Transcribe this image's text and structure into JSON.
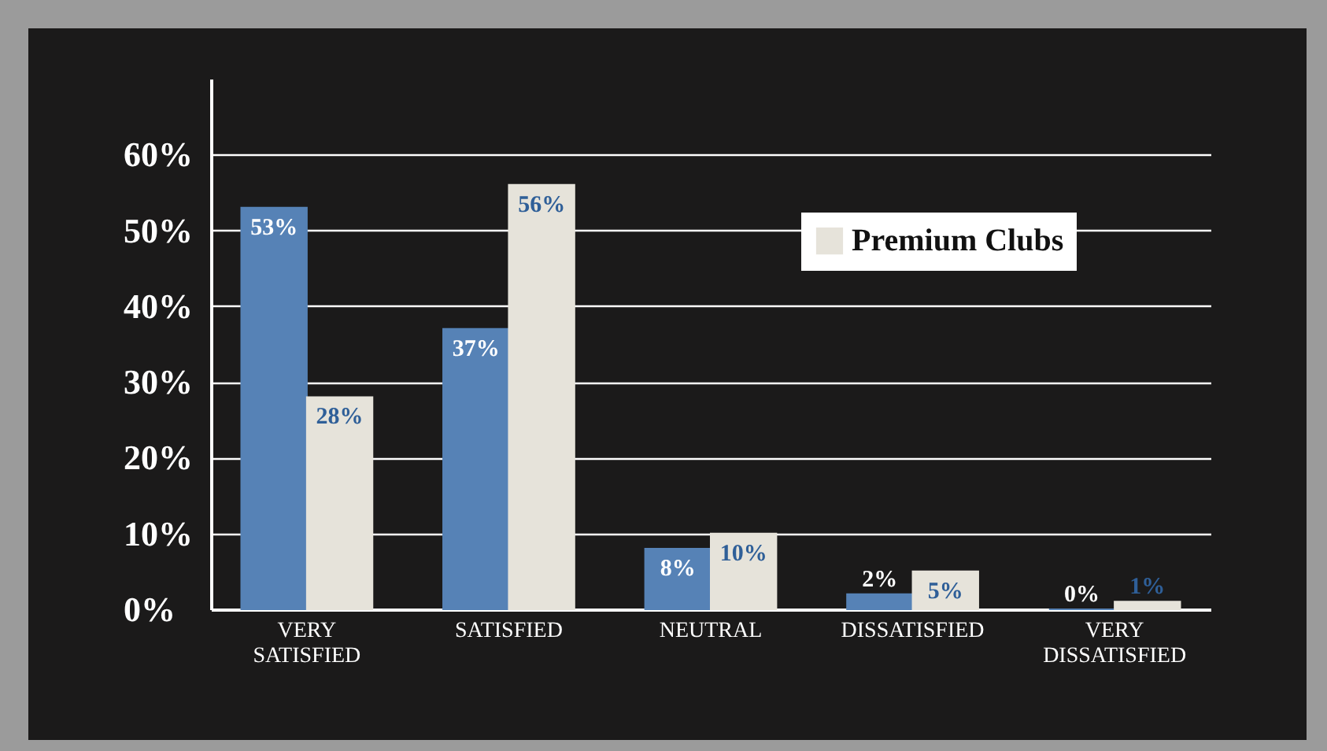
{
  "chart_data": {
    "type": "bar",
    "categories": [
      "VERY SATISFIED",
      "SATISFIED",
      "NEUTRAL",
      "DISSATISFIED",
      "VERY DISSATISFIED"
    ],
    "series": [
      {
        "color": "#5682b6",
        "values": [
          53,
          37,
          8,
          2,
          0
        ],
        "value_labels": [
          "53%",
          "37%",
          "8%",
          "2%",
          "0%"
        ]
      },
      {
        "name": "Premium Clubs",
        "color": "#e6e3da",
        "values": [
          28,
          56,
          10,
          5,
          1
        ],
        "value_labels": [
          "28%",
          "56%",
          "10%",
          "5%",
          "1%"
        ]
      }
    ],
    "ylim": [
      0,
      70
    ],
    "yticks": [
      {
        "value": 0,
        "label": "0%"
      },
      {
        "value": 10,
        "label": "10%"
      },
      {
        "value": 20,
        "label": "20%"
      },
      {
        "value": 30,
        "label": "30%"
      },
      {
        "value": 40,
        "label": "40%"
      },
      {
        "value": 50,
        "label": "50%"
      },
      {
        "value": 60,
        "label": "60%"
      }
    ],
    "grid": "y",
    "legend": "top right"
  }
}
